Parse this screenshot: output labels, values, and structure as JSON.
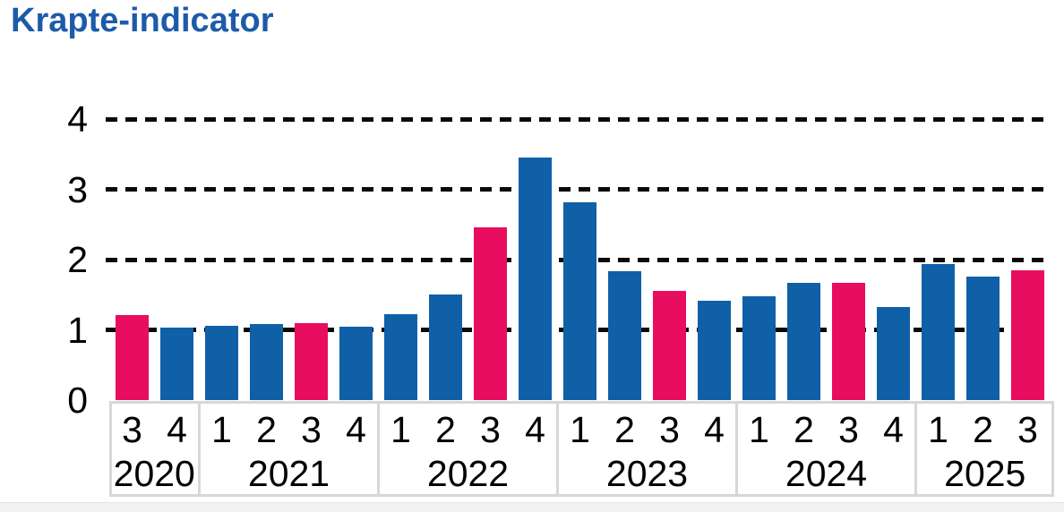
{
  "title": "Krapte-indicator",
  "colors": {
    "title": "#1d5ba9",
    "bar_default": "#1060a8",
    "bar_highlight": "#e80d5f",
    "gridline": "#0a0a0a",
    "axis_box_border": "#d7d7d7",
    "bottom_strip_bg": "#f2f1f0",
    "bottom_strip_edge": "#e4e3e2"
  },
  "chart_data": {
    "type": "bar",
    "title": "Krapte-indicator",
    "xlabel": "",
    "ylabel": "",
    "ylim": [
      0,
      4
    ],
    "yticks": [
      0,
      1,
      2,
      3,
      4
    ],
    "grid": "horizontal dashed black lines at y=1,2,3,4, drawn behind bars",
    "legend_position": "none",
    "highlight_note": "third-quarter bars are highlighted in magenta, all other quarters are blue",
    "groups": [
      {
        "year": "2020",
        "quarters": [
          "3",
          "4"
        ]
      },
      {
        "year": "2021",
        "quarters": [
          "1",
          "2",
          "3",
          "4"
        ]
      },
      {
        "year": "2022",
        "quarters": [
          "1",
          "2",
          "3",
          "4"
        ]
      },
      {
        "year": "2023",
        "quarters": [
          "1",
          "2",
          "3",
          "4"
        ]
      },
      {
        "year": "2024",
        "quarters": [
          "1",
          "2",
          "3",
          "4"
        ]
      },
      {
        "year": "2025",
        "quarters": [
          "1",
          "2",
          "3"
        ]
      }
    ],
    "points": [
      {
        "year": "2020",
        "quarter": "3",
        "value": 1.21,
        "highlight": true
      },
      {
        "year": "2020",
        "quarter": "4",
        "value": 1.03,
        "highlight": false
      },
      {
        "year": "2021",
        "quarter": "1",
        "value": 1.06,
        "highlight": false
      },
      {
        "year": "2021",
        "quarter": "2",
        "value": 1.08,
        "highlight": false
      },
      {
        "year": "2021",
        "quarter": "3",
        "value": 1.1,
        "highlight": true
      },
      {
        "year": "2021",
        "quarter": "4",
        "value": 1.04,
        "highlight": false
      },
      {
        "year": "2022",
        "quarter": "1",
        "value": 1.22,
        "highlight": false
      },
      {
        "year": "2022",
        "quarter": "2",
        "value": 1.5,
        "highlight": false
      },
      {
        "year": "2022",
        "quarter": "3",
        "value": 2.46,
        "highlight": true
      },
      {
        "year": "2022",
        "quarter": "4",
        "value": 3.45,
        "highlight": false
      },
      {
        "year": "2023",
        "quarter": "1",
        "value": 2.82,
        "highlight": false
      },
      {
        "year": "2023",
        "quarter": "2",
        "value": 1.83,
        "highlight": false
      },
      {
        "year": "2023",
        "quarter": "3",
        "value": 1.55,
        "highlight": true
      },
      {
        "year": "2023",
        "quarter": "4",
        "value": 1.41,
        "highlight": false
      },
      {
        "year": "2024",
        "quarter": "1",
        "value": 1.48,
        "highlight": false
      },
      {
        "year": "2024",
        "quarter": "2",
        "value": 1.67,
        "highlight": false
      },
      {
        "year": "2024",
        "quarter": "3",
        "value": 1.67,
        "highlight": true
      },
      {
        "year": "2024",
        "quarter": "4",
        "value": 1.32,
        "highlight": false
      },
      {
        "year": "2025",
        "quarter": "1",
        "value": 1.94,
        "highlight": false
      },
      {
        "year": "2025",
        "quarter": "2",
        "value": 1.76,
        "highlight": false
      },
      {
        "year": "2025",
        "quarter": "3",
        "value": 1.85,
        "highlight": true
      }
    ]
  }
}
